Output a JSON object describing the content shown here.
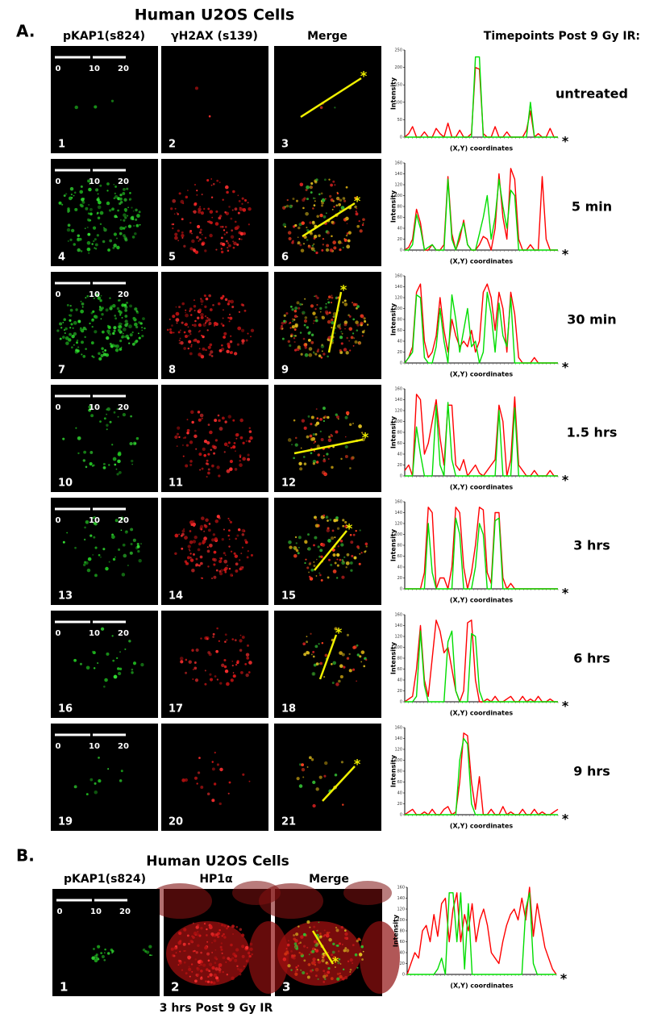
{
  "panel_a": {
    "label": "A.",
    "title": "Human U2OS Cells",
    "column_headers": [
      "pKAP1(s824)",
      "γH2AX (s139)",
      "Merge"
    ],
    "timepoints_header": "Timepoints Post 9 Gy IR:",
    "rows": [
      {
        "image_numbers": [
          "1",
          "2",
          "3"
        ],
        "scale_labels": [
          "0",
          "10",
          "20"
        ],
        "marker": "*",
        "timepoint": "untreated",
        "plot": {
          "y_label": "Intensity",
          "x_label": "(X,Y) coordinates",
          "ylim": [
            0,
            250
          ],
          "yticks": [
            0,
            50,
            100,
            150,
            200,
            250
          ],
          "series": [
            {
              "color": "#ff0000",
              "values": [
                0,
                10,
                30,
                0,
                0,
                15,
                0,
                0,
                25,
                10,
                0,
                40,
                0,
                0,
                20,
                0,
                0,
                10,
                200,
                195,
                10,
                0,
                0,
                30,
                0,
                0,
                15,
                0,
                0,
                0,
                0,
                20,
                75,
                0,
                10,
                0,
                0,
                25,
                0,
                0
              ]
            },
            {
              "color": "#00dd00",
              "values": [
                0,
                0,
                0,
                0,
                0,
                0,
                0,
                0,
                0,
                0,
                0,
                0,
                0,
                0,
                0,
                0,
                0,
                0,
                230,
                230,
                0,
                0,
                0,
                0,
                0,
                0,
                0,
                0,
                0,
                0,
                0,
                0,
                100,
                0,
                0,
                0,
                0,
                0,
                0,
                0
              ]
            }
          ]
        }
      },
      {
        "image_numbers": [
          "4",
          "5",
          "6"
        ],
        "scale_labels": [
          "0",
          "10",
          "20"
        ],
        "marker": "*",
        "timepoint": "5 min",
        "plot": {
          "y_label": "Intensity",
          "x_label": "(X,Y) coordinates",
          "ylim": [
            0,
            160
          ],
          "yticks": [
            0,
            20,
            40,
            60,
            80,
            100,
            120,
            140,
            160
          ],
          "series": [
            {
              "color": "#ff0000",
              "values": [
                0,
                5,
                20,
                75,
                50,
                0,
                0,
                10,
                0,
                0,
                10,
                135,
                30,
                0,
                20,
                55,
                10,
                0,
                0,
                10,
                25,
                20,
                0,
                40,
                140,
                60,
                20,
                150,
                130,
                20,
                0,
                0,
                10,
                0,
                0,
                135,
                20,
                0,
                0,
                0
              ]
            },
            {
              "color": "#00dd00",
              "values": [
                0,
                0,
                10,
                65,
                40,
                0,
                5,
                10,
                0,
                0,
                0,
                130,
                20,
                0,
                30,
                50,
                10,
                0,
                0,
                30,
                60,
                100,
                20,
                60,
                130,
                80,
                40,
                110,
                100,
                0,
                0,
                0,
                0,
                0,
                0,
                0,
                0,
                0,
                0,
                0
              ]
            }
          ]
        }
      },
      {
        "image_numbers": [
          "7",
          "8",
          "9"
        ],
        "scale_labels": [
          "0",
          "10",
          "20"
        ],
        "marker": "*",
        "timepoint": "30 min",
        "plot": {
          "y_label": "Intensity",
          "x_label": "(X,Y) coordinates",
          "ylim": [
            0,
            160
          ],
          "yticks": [
            0,
            20,
            40,
            60,
            80,
            100,
            120,
            140,
            160
          ],
          "series": [
            {
              "color": "#ff0000",
              "values": [
                0,
                10,
                30,
                130,
                145,
                40,
                10,
                20,
                50,
                120,
                60,
                20,
                80,
                50,
                30,
                40,
                30,
                60,
                20,
                40,
                130,
                145,
                120,
                60,
                130,
                100,
                20,
                130,
                90,
                10,
                0,
                0,
                0,
                10,
                0,
                0,
                0,
                0,
                0,
                0
              ]
            },
            {
              "color": "#00dd00",
              "values": [
                0,
                10,
                20,
                125,
                120,
                10,
                0,
                0,
                30,
                100,
                40,
                0,
                125,
                80,
                20,
                60,
                100,
                30,
                40,
                0,
                20,
                130,
                90,
                20,
                110,
                50,
                30,
                120,
                0,
                0,
                0,
                0,
                0,
                0,
                0,
                0,
                0,
                0,
                0,
                0
              ]
            }
          ]
        }
      },
      {
        "image_numbers": [
          "10",
          "11",
          "12"
        ],
        "scale_labels": [
          "0",
          "10",
          "20"
        ],
        "marker": "*",
        "timepoint": "1.5 hrs",
        "plot": {
          "y_label": "Intensity",
          "x_label": "(X,Y) coordinates",
          "ylim": [
            0,
            160
          ],
          "yticks": [
            0,
            20,
            40,
            60,
            80,
            100,
            120,
            140,
            160
          ],
          "series": [
            {
              "color": "#ff0000",
              "values": [
                10,
                20,
                0,
                150,
                140,
                40,
                60,
                100,
                140,
                70,
                20,
                130,
                130,
                20,
                10,
                30,
                0,
                10,
                20,
                5,
                0,
                10,
                20,
                30,
                130,
                100,
                0,
                30,
                145,
                20,
                10,
                0,
                0,
                10,
                0,
                0,
                0,
                10,
                0,
                0
              ]
            },
            {
              "color": "#00dd00",
              "values": [
                0,
                0,
                0,
                90,
                40,
                0,
                0,
                0,
                130,
                20,
                0,
                135,
                30,
                0,
                0,
                0,
                0,
                0,
                0,
                0,
                0,
                0,
                0,
                0,
                120,
                0,
                0,
                0,
                125,
                0,
                0,
                0,
                0,
                0,
                0,
                0,
                0,
                0,
                0,
                0
              ]
            }
          ]
        }
      },
      {
        "image_numbers": [
          "13",
          "14",
          "15"
        ],
        "scale_labels": [
          "0",
          "10",
          "20"
        ],
        "marker": "*",
        "timepoint": "3 hrs",
        "plot": {
          "y_label": "Intensity",
          "x_label": "(X,Y) coordinates",
          "ylim": [
            0,
            160
          ],
          "yticks": [
            0,
            20,
            40,
            60,
            80,
            100,
            120,
            140,
            160
          ],
          "series": [
            {
              "color": "#ff0000",
              "values": [
                0,
                0,
                0,
                0,
                0,
                30,
                150,
                140,
                0,
                20,
                20,
                0,
                40,
                150,
                140,
                40,
                0,
                30,
                80,
                150,
                145,
                30,
                10,
                140,
                140,
                20,
                0,
                10,
                0,
                0,
                0,
                0,
                0,
                0,
                0,
                0,
                0,
                0,
                0,
                0
              ]
            },
            {
              "color": "#00dd00",
              "values": [
                0,
                0,
                0,
                0,
                0,
                0,
                120,
                30,
                0,
                0,
                0,
                0,
                0,
                130,
                100,
                0,
                0,
                0,
                40,
                120,
                100,
                0,
                0,
                125,
                130,
                0,
                0,
                0,
                0,
                0,
                0,
                0,
                0,
                0,
                0,
                0,
                0,
                0,
                0,
                0
              ]
            }
          ]
        }
      },
      {
        "image_numbers": [
          "16",
          "17",
          "18"
        ],
        "scale_labels": [
          "0",
          "10",
          "20"
        ],
        "marker": "*",
        "timepoint": "6 hrs",
        "plot": {
          "y_label": "Intensity",
          "x_label": "(X,Y) coordinates",
          "ylim": [
            0,
            160
          ],
          "yticks": [
            0,
            20,
            40,
            60,
            80,
            100,
            120,
            140,
            160
          ],
          "series": [
            {
              "color": "#ff0000",
              "values": [
                0,
                5,
                10,
                60,
                140,
                40,
                10,
                80,
                150,
                130,
                90,
                100,
                60,
                20,
                0,
                20,
                145,
                150,
                40,
                0,
                0,
                5,
                0,
                10,
                0,
                0,
                5,
                10,
                0,
                0,
                10,
                0,
                5,
                0,
                10,
                0,
                0,
                5,
                0,
                0
              ]
            },
            {
              "color": "#00dd00",
              "values": [
                0,
                0,
                0,
                10,
                130,
                30,
                0,
                0,
                0,
                0,
                0,
                110,
                130,
                20,
                0,
                0,
                0,
                125,
                120,
                20,
                0,
                0,
                0,
                0,
                0,
                0,
                0,
                0,
                0,
                0,
                0,
                0,
                0,
                0,
                0,
                0,
                0,
                0,
                0,
                0
              ]
            }
          ]
        }
      },
      {
        "image_numbers": [
          "19",
          "20",
          "21"
        ],
        "scale_labels": [
          "0",
          "10",
          "20"
        ],
        "marker": "*",
        "timepoint": "9 hrs",
        "plot": {
          "y_label": "Intensity",
          "x_label": "(X,Y) coordinates",
          "ylim": [
            0,
            160
          ],
          "yticks": [
            0,
            20,
            40,
            60,
            80,
            100,
            120,
            140,
            160
          ],
          "series": [
            {
              "color": "#ff0000",
              "values": [
                0,
                5,
                10,
                0,
                0,
                5,
                0,
                10,
                0,
                0,
                10,
                15,
                0,
                5,
                60,
                150,
                145,
                60,
                10,
                70,
                0,
                0,
                10,
                0,
                0,
                15,
                0,
                5,
                0,
                0,
                10,
                0,
                0,
                10,
                0,
                5,
                0,
                0,
                5,
                10
              ]
            },
            {
              "color": "#00dd00",
              "values": [
                0,
                0,
                0,
                0,
                0,
                0,
                0,
                0,
                0,
                0,
                0,
                0,
                0,
                0,
                100,
                140,
                130,
                20,
                0,
                0,
                0,
                0,
                0,
                0,
                0,
                0,
                0,
                0,
                0,
                0,
                0,
                0,
                0,
                0,
                0,
                0,
                0,
                0,
                0,
                0
              ]
            }
          ]
        }
      }
    ]
  },
  "panel_b": {
    "label": "B.",
    "title": "Human U2OS Cells",
    "column_headers": [
      "pKAP1(s824)",
      "HP1α",
      "Merge"
    ],
    "image_numbers": [
      "1",
      "2",
      "3"
    ],
    "scale_labels": [
      "0",
      "10",
      "20"
    ],
    "marker": "*",
    "caption": "3 hrs Post 9 Gy IR",
    "plot": {
      "y_label": "Intensity",
      "x_label": "(X,Y) coordinates",
      "ylim": [
        0,
        160
      ],
      "yticks": [
        0,
        20,
        40,
        60,
        80,
        100,
        120,
        140,
        160
      ],
      "series": [
        {
          "color": "#ff0000",
          "values": [
            0,
            20,
            40,
            30,
            80,
            90,
            60,
            110,
            70,
            130,
            140,
            60,
            120,
            150,
            60,
            110,
            80,
            130,
            60,
            100,
            120,
            90,
            40,
            30,
            20,
            60,
            90,
            110,
            120,
            100,
            140,
            100,
            160,
            70,
            130,
            90,
            50,
            30,
            10,
            0
          ]
        },
        {
          "color": "#00dd00",
          "values": [
            0,
            0,
            0,
            0,
            0,
            0,
            0,
            0,
            10,
            30,
            0,
            150,
            150,
            60,
            150,
            10,
            130,
            0,
            0,
            0,
            0,
            0,
            0,
            0,
            0,
            0,
            0,
            0,
            0,
            0,
            0,
            120,
            150,
            20,
            0,
            0,
            0,
            0,
            0,
            0
          ]
        }
      ]
    }
  }
}
